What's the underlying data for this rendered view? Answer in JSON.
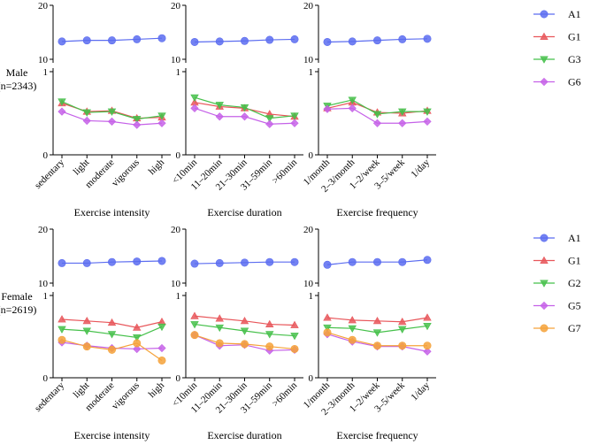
{
  "figure": {
    "groups": [
      {
        "label": "Male",
        "n": "(n=2343)"
      },
      {
        "label": "Female",
        "n": "(n=2619)"
      }
    ],
    "xlabels": [
      "Exercise intensity",
      "Exercise duration",
      "Exercise frequency"
    ]
  },
  "colors": {
    "A1": "#5b6cf0",
    "G1": "#e8565a",
    "G2": "#45c04a",
    "G3": "#45c04a",
    "G5": "#c561e8",
    "G6": "#c561e8",
    "G7": "#f5a23a"
  },
  "legends": [
    [
      "A1",
      "G1",
      "G3",
      "G6"
    ],
    [
      "A1",
      "G1",
      "G2",
      "G5",
      "G7"
    ]
  ],
  "chart_data": [
    {
      "type": "line",
      "row": 0,
      "col": 0,
      "categories": [
        "sedentary",
        "light",
        "moderate",
        "vigorous",
        "high"
      ],
      "xlabel": "Exercise intensity",
      "y_upper": {
        "range": [
          10,
          20
        ],
        "ticks": [
          "10",
          "20"
        ]
      },
      "y_lower": {
        "range": [
          0,
          1
        ],
        "ticks": [
          "0",
          "1"
        ]
      },
      "series": [
        {
          "name": "A1",
          "marker": "circle",
          "values": [
            13.3,
            13.5,
            13.5,
            13.7,
            13.9
          ]
        },
        {
          "name": "G1",
          "marker": "triangle-up",
          "values": [
            0.62,
            0.52,
            0.53,
            0.44,
            0.45
          ]
        },
        {
          "name": "G3",
          "marker": "triangle-down",
          "values": [
            0.64,
            0.51,
            0.52,
            0.43,
            0.47
          ]
        },
        {
          "name": "G6",
          "marker": "diamond",
          "values": [
            0.52,
            0.41,
            0.4,
            0.36,
            0.38
          ]
        }
      ]
    },
    {
      "type": "line",
      "row": 0,
      "col": 1,
      "categories": [
        "<10min",
        "11–20min",
        "21–30min",
        "31–59min",
        ">60min"
      ],
      "xlabel": "Exercise duration",
      "y_upper": {
        "range": [
          10,
          20
        ],
        "ticks": [
          "10",
          "20"
        ]
      },
      "y_lower": {
        "range": [
          0,
          1
        ],
        "ticks": [
          "0",
          "1"
        ]
      },
      "series": [
        {
          "name": "A1",
          "marker": "circle",
          "values": [
            13.2,
            13.3,
            13.4,
            13.6,
            13.7
          ]
        },
        {
          "name": "G1",
          "marker": "triangle-up",
          "values": [
            0.63,
            0.58,
            0.56,
            0.49,
            0.46
          ]
        },
        {
          "name": "G3",
          "marker": "triangle-down",
          "values": [
            0.69,
            0.6,
            0.57,
            0.44,
            0.47
          ]
        },
        {
          "name": "G6",
          "marker": "diamond",
          "values": [
            0.56,
            0.46,
            0.46,
            0.37,
            0.38
          ]
        }
      ]
    },
    {
      "type": "line",
      "row": 0,
      "col": 2,
      "categories": [
        "1/month",
        "2–3/month",
        "1–2/week",
        "3–5/week",
        "1/day"
      ],
      "xlabel": "Exercise frequency",
      "y_upper": {
        "range": [
          10,
          20
        ],
        "ticks": [
          "10",
          "20"
        ]
      },
      "y_lower": {
        "range": [
          0,
          1
        ],
        "ticks": [
          "0",
          "1"
        ]
      },
      "series": [
        {
          "name": "A1",
          "marker": "circle",
          "values": [
            13.2,
            13.3,
            13.5,
            13.7,
            13.8
          ]
        },
        {
          "name": "G1",
          "marker": "triangle-up",
          "values": [
            0.56,
            0.63,
            0.51,
            0.5,
            0.53
          ]
        },
        {
          "name": "G3",
          "marker": "triangle-down",
          "values": [
            0.59,
            0.66,
            0.49,
            0.52,
            0.52
          ]
        },
        {
          "name": "G6",
          "marker": "diamond",
          "values": [
            0.55,
            0.56,
            0.38,
            0.38,
            0.4
          ]
        }
      ]
    },
    {
      "type": "line",
      "row": 1,
      "col": 0,
      "categories": [
        "sedentary",
        "light",
        "moderate",
        "vigorous",
        "high"
      ],
      "xlabel": "Exercise intensity",
      "y_upper": {
        "range": [
          10,
          20
        ],
        "ticks": [
          "10",
          "20"
        ]
      },
      "y_lower": {
        "range": [
          0,
          1
        ],
        "ticks": [
          "0",
          "1"
        ]
      },
      "series": [
        {
          "name": "A1",
          "marker": "circle",
          "values": [
            13.7,
            13.7,
            13.9,
            14.0,
            14.1
          ]
        },
        {
          "name": "G1",
          "marker": "triangle-up",
          "values": [
            0.71,
            0.69,
            0.67,
            0.61,
            0.68
          ]
        },
        {
          "name": "G2",
          "marker": "triangle-down",
          "values": [
            0.59,
            0.57,
            0.53,
            0.49,
            0.62
          ]
        },
        {
          "name": "G5",
          "marker": "diamond",
          "values": [
            0.43,
            0.39,
            0.36,
            0.35,
            0.36
          ]
        },
        {
          "name": "G7",
          "marker": "circle",
          "values": [
            0.46,
            0.38,
            0.34,
            0.42,
            0.21
          ]
        }
      ]
    },
    {
      "type": "line",
      "row": 1,
      "col": 1,
      "categories": [
        "<10min",
        "11–20min",
        "21–30min",
        "31–59min",
        ">60min"
      ],
      "xlabel": "Exercise duration",
      "y_upper": {
        "range": [
          10,
          20
        ],
        "ticks": [
          "10",
          "20"
        ]
      },
      "y_lower": {
        "range": [
          0,
          1
        ],
        "ticks": [
          "0",
          "1"
        ]
      },
      "series": [
        {
          "name": "A1",
          "marker": "circle",
          "values": [
            13.6,
            13.7,
            13.8,
            13.9,
            13.9
          ]
        },
        {
          "name": "G1",
          "marker": "triangle-up",
          "values": [
            0.75,
            0.72,
            0.69,
            0.65,
            0.64
          ]
        },
        {
          "name": "G2",
          "marker": "triangle-down",
          "values": [
            0.65,
            0.61,
            0.57,
            0.53,
            0.51
          ]
        },
        {
          "name": "G5",
          "marker": "diamond",
          "values": [
            0.52,
            0.39,
            0.4,
            0.33,
            0.34
          ]
        },
        {
          "name": "G7",
          "marker": "circle",
          "values": [
            0.52,
            0.42,
            0.41,
            0.38,
            0.35
          ]
        }
      ]
    },
    {
      "type": "line",
      "row": 1,
      "col": 2,
      "categories": [
        "1/month",
        "2–3/month",
        "1–2/week",
        "3–5/week",
        "1/day"
      ],
      "xlabel": "Exercise frequency",
      "y_upper": {
        "range": [
          10,
          20
        ],
        "ticks": [
          "10",
          "20"
        ]
      },
      "y_lower": {
        "range": [
          0,
          1
        ],
        "ticks": [
          "0",
          "1"
        ]
      },
      "series": [
        {
          "name": "A1",
          "marker": "circle",
          "values": [
            13.4,
            13.9,
            13.9,
            13.9,
            14.3
          ]
        },
        {
          "name": "G1",
          "marker": "triangle-up",
          "values": [
            0.73,
            0.7,
            0.69,
            0.68,
            0.73
          ]
        },
        {
          "name": "G2",
          "marker": "triangle-down",
          "values": [
            0.61,
            0.6,
            0.55,
            0.59,
            0.63
          ]
        },
        {
          "name": "G5",
          "marker": "diamond",
          "values": [
            0.53,
            0.44,
            0.38,
            0.38,
            0.32
          ]
        },
        {
          "name": "G7",
          "marker": "circle",
          "values": [
            0.55,
            0.46,
            0.39,
            0.39,
            0.39
          ]
        }
      ]
    }
  ]
}
